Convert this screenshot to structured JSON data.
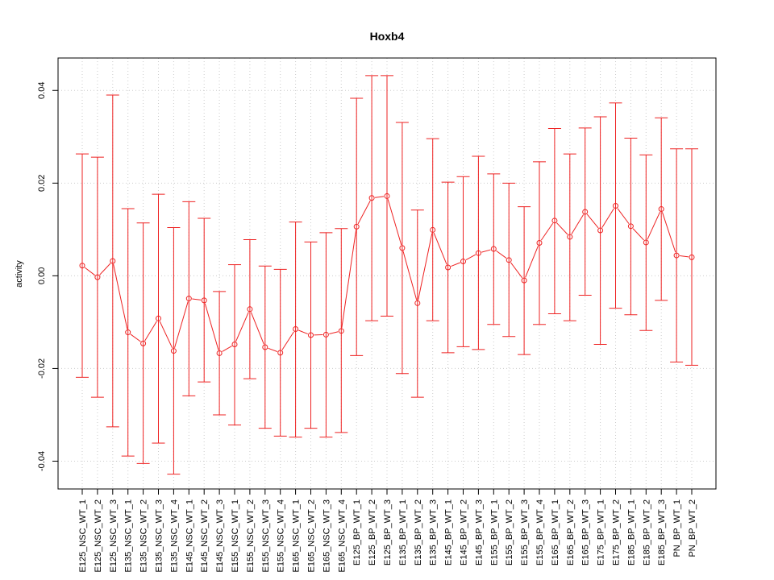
{
  "chart_data": {
    "type": "line",
    "title": "Hoxb4",
    "xlabel": "",
    "ylabel": "activity",
    "ylim": [
      -0.046,
      0.047
    ],
    "yticks": [
      -0.04,
      -0.02,
      0.0,
      0.02,
      0.04
    ],
    "ytick_labels": [
      "-0.04",
      "-0.02",
      "0.00",
      "0.02",
      "0.04"
    ],
    "grid": true,
    "legend": "none",
    "color": "#ee2222",
    "grid_color": "#cccccc",
    "categories": [
      "E125_NSC_WT_1",
      "E125_NSC_WT_2",
      "E125_NSC_WT_3",
      "E135_NSC_WT_1",
      "E135_NSC_WT_2",
      "E135_NSC_WT_3",
      "E135_NSC_WT_4",
      "E145_NSC_WT_1",
      "E145_NSC_WT_2",
      "E145_NSC_WT_3",
      "E155_NSC_WT_1",
      "E155_NSC_WT_2",
      "E155_NSC_WT_3",
      "E155_NSC_WT_4",
      "E165_NSC_WT_1",
      "E165_NSC_WT_2",
      "E165_NSC_WT_3",
      "E165_NSC_WT_4",
      "E125_BP_WT_1",
      "E125_BP_WT_2",
      "E125_BP_WT_3",
      "E135_BP_WT_1",
      "E135_BP_WT_2",
      "E135_BP_WT_3",
      "E145_BP_WT_1",
      "E145_BP_WT_2",
      "E145_BP_WT_3",
      "E155_BP_WT_1",
      "E155_BP_WT_2",
      "E155_BP_WT_3",
      "E155_BP_WT_4",
      "E165_BP_WT_1",
      "E165_BP_WT_2",
      "E165_BP_WT_3",
      "E175_BP_WT_1",
      "E175_BP_WT_2",
      "E185_BP_WT_1",
      "E185_BP_WT_2",
      "E185_BP_WT_3",
      "PN_BP_WT_1",
      "PN_BP_WT_2"
    ],
    "series": [
      {
        "values": [
          0.0022,
          -0.0003,
          0.0032,
          -0.0122,
          -0.0146,
          -0.0092,
          -0.0162,
          -0.0049,
          -0.0053,
          -0.0167,
          -0.0148,
          -0.0072,
          -0.0154,
          -0.0166,
          -0.0115,
          -0.0128,
          -0.0127,
          -0.0119,
          0.0106,
          0.0168,
          0.0172,
          0.006,
          -0.0059,
          0.0099,
          0.0018,
          0.0031,
          0.0049,
          0.0058,
          0.0034,
          -0.001,
          0.0071,
          0.0119,
          0.0084,
          0.0138,
          0.0098,
          0.0151,
          0.0107,
          0.0072,
          0.0144,
          0.0044,
          0.004
        ],
        "lower": [
          -0.0219,
          -0.0262,
          -0.0326,
          -0.0389,
          -0.0405,
          -0.0361,
          -0.0428,
          -0.0259,
          -0.0229,
          -0.03,
          -0.0322,
          -0.0222,
          -0.0329,
          -0.0346,
          -0.0348,
          -0.0329,
          -0.0348,
          -0.0338,
          -0.0172,
          -0.0097,
          -0.0087,
          -0.0211,
          -0.0262,
          -0.0097,
          -0.0166,
          -0.0153,
          -0.0159,
          -0.0105,
          -0.0131,
          -0.017,
          -0.0105,
          -0.0082,
          -0.0097,
          -0.0042,
          -0.0148,
          -0.007,
          -0.0084,
          -0.0118,
          -0.0053,
          -0.0186,
          -0.0193
        ],
        "upper": [
          0.0263,
          0.0256,
          0.039,
          0.0145,
          0.0114,
          0.0176,
          0.0104,
          0.016,
          0.0124,
          -0.0034,
          0.0024,
          0.0078,
          0.0021,
          0.0014,
          0.0116,
          0.0073,
          0.0093,
          0.0102,
          0.0383,
          0.0432,
          0.0432,
          0.0331,
          0.0142,
          0.0296,
          0.0202,
          0.0214,
          0.0258,
          0.022,
          0.02,
          0.0149,
          0.0246,
          0.0318,
          0.0263,
          0.0319,
          0.0343,
          0.0373,
          0.0297,
          0.0261,
          0.0341,
          0.0274,
          0.0274
        ]
      }
    ]
  }
}
